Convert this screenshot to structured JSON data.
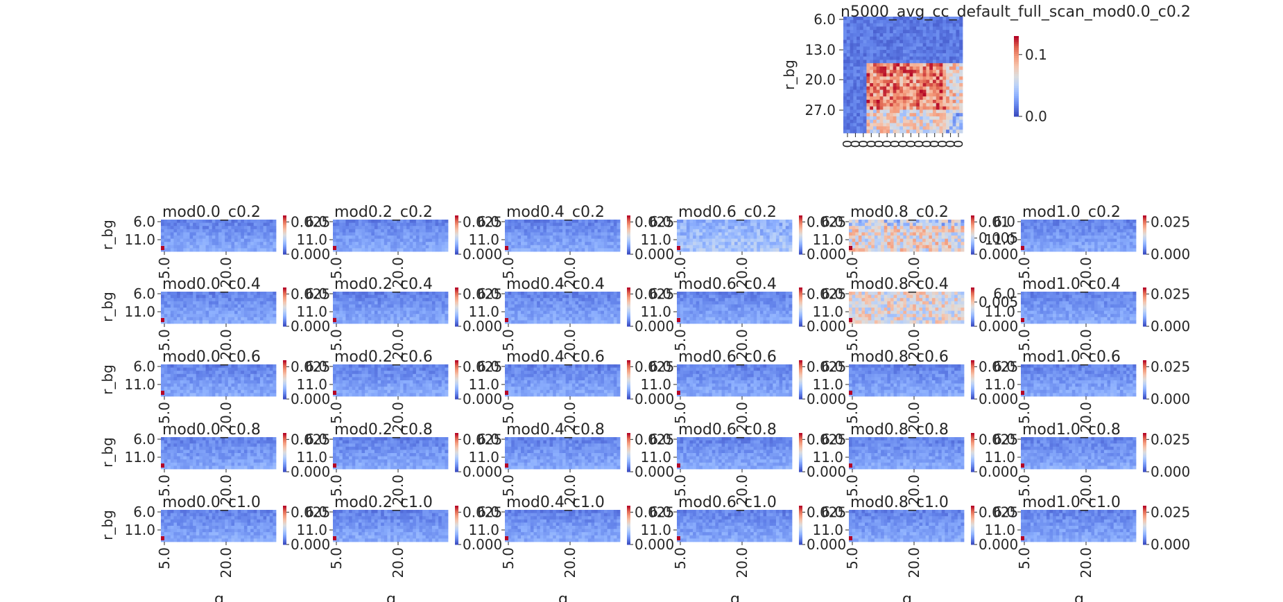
{
  "colors": {
    "low": "#3b4cc0",
    "mid": "#dddddd",
    "high": "#b40426",
    "text": "#262626"
  },
  "chart_data": [
    {
      "type": "heatmap",
      "role": "main",
      "title": "n5000_avg_cc_default_full_scan_mod0.0_c0.2",
      "xlabel": "",
      "ylabel": "r_bg",
      "yticks": [
        "6.0",
        "13.0",
        "20.0",
        "27.0"
      ],
      "xticks": [
        "0",
        "0",
        "0",
        "0",
        "0",
        "0",
        "0",
        "0",
        "0",
        "0",
        "0",
        "0",
        "0",
        "0",
        "0"
      ],
      "colorbar": {
        "range": [
          0,
          0.13
        ],
        "ticks": [
          "0.0",
          "0.1"
        ]
      },
      "pattern": "main",
      "grid_shape": [
        35,
        36
      ]
    },
    {
      "type": "heatmap-grid",
      "role": "subplots",
      "xlabel": "g",
      "ylabel": "r_bg",
      "yticks": [
        "6.0",
        "11.0"
      ],
      "xticks": [
        "5.0",
        "20.0"
      ],
      "grid_shape": [
        10,
        36
      ],
      "panels": [
        {
          "title": "mod0.0_c0.2",
          "cbar": [
            "0.000",
            "0.025"
          ],
          "pattern": "flat",
          "vmax": 0.03
        },
        {
          "title": "mod0.2_c0.2",
          "cbar": [
            "0.000",
            "0.025"
          ],
          "pattern": "flat",
          "vmax": 0.03
        },
        {
          "title": "mod0.4_c0.2",
          "cbar": [
            "0.000",
            "0.025"
          ],
          "pattern": "flat",
          "vmax": 0.03
        },
        {
          "title": "mod0.6_c0.2",
          "cbar": [
            "0.000",
            "0.025"
          ],
          "pattern": "light",
          "vmax": 0.03
        },
        {
          "title": "mod0.8_c0.2",
          "cbar": [
            "0.000",
            "0.005",
            "0.01"
          ],
          "pattern": "warm",
          "vmax": 0.012
        },
        {
          "title": "mod1.0_c0.2",
          "cbar": [
            "0.000",
            "0.025"
          ],
          "pattern": "flat",
          "vmax": 0.03
        },
        {
          "title": "mod0.0_c0.4",
          "cbar": [
            "0.000",
            "0.025"
          ],
          "pattern": "flat",
          "vmax": 0.03
        },
        {
          "title": "mod0.2_c0.4",
          "cbar": [
            "0.000",
            "0.025"
          ],
          "pattern": "flat",
          "vmax": 0.03
        },
        {
          "title": "mod0.4_c0.4",
          "cbar": [
            "0.000",
            "0.025"
          ],
          "pattern": "flat",
          "vmax": 0.03
        },
        {
          "title": "mod0.6_c0.4",
          "cbar": [
            "0.000",
            "0.025"
          ],
          "pattern": "flat",
          "vmax": 0.03
        },
        {
          "title": "mod0.8_c0.4",
          "cbar": [
            "0.000",
            "0.005"
          ],
          "pattern": "warm2",
          "vmax": 0.008
        },
        {
          "title": "mod1.0_c0.4",
          "cbar": [
            "0.000",
            "0.025"
          ],
          "pattern": "flat",
          "vmax": 0.03
        },
        {
          "title": "mod0.0_c0.6",
          "cbar": [
            "0.000",
            "0.025"
          ],
          "pattern": "flat",
          "vmax": 0.03
        },
        {
          "title": "mod0.2_c0.6",
          "cbar": [
            "0.000",
            "0.025"
          ],
          "pattern": "flat",
          "vmax": 0.03
        },
        {
          "title": "mod0.4_c0.6",
          "cbar": [
            "0.000",
            "0.025"
          ],
          "pattern": "flat",
          "vmax": 0.03
        },
        {
          "title": "mod0.6_c0.6",
          "cbar": [
            "0.000",
            "0.025"
          ],
          "pattern": "flat",
          "vmax": 0.03
        },
        {
          "title": "mod0.8_c0.6",
          "cbar": [
            "0.000",
            "0.025"
          ],
          "pattern": "flat",
          "vmax": 0.03
        },
        {
          "title": "mod1.0_c0.6",
          "cbar": [
            "0.000",
            "0.025"
          ],
          "pattern": "flat",
          "vmax": 0.03
        },
        {
          "title": "mod0.0_c0.8",
          "cbar": [
            "0.000",
            "0.025"
          ],
          "pattern": "flat",
          "vmax": 0.03
        },
        {
          "title": "mod0.2_c0.8",
          "cbar": [
            "0.000",
            "0.025"
          ],
          "pattern": "flat",
          "vmax": 0.03
        },
        {
          "title": "mod0.4_c0.8",
          "cbar": [
            "0.000",
            "0.025"
          ],
          "pattern": "flat",
          "vmax": 0.03
        },
        {
          "title": "mod0.6_c0.8",
          "cbar": [
            "0.000",
            "0.025"
          ],
          "pattern": "flat",
          "vmax": 0.03
        },
        {
          "title": "mod0.8_c0.8",
          "cbar": [
            "0.000",
            "0.025"
          ],
          "pattern": "flat",
          "vmax": 0.03
        },
        {
          "title": "mod1.0_c0.8",
          "cbar": [
            "0.000",
            "0.025"
          ],
          "pattern": "flat",
          "vmax": 0.03
        },
        {
          "title": "mod0.0_c1.0",
          "cbar": [
            "0.000",
            "0.025"
          ],
          "pattern": "flat",
          "vmax": 0.03
        },
        {
          "title": "mod0.2_c1.0",
          "cbar": [
            "0.000",
            "0.025"
          ],
          "pattern": "flat",
          "vmax": 0.03
        },
        {
          "title": "mod0.4_c1.0",
          "cbar": [
            "0.000",
            "0.025"
          ],
          "pattern": "flat",
          "vmax": 0.03
        },
        {
          "title": "mod0.6_c1.0",
          "cbar": [
            "0.000",
            "0.025"
          ],
          "pattern": "flat",
          "vmax": 0.03
        },
        {
          "title": "mod0.8_c1.0",
          "cbar": [
            "0.000",
            "0.025"
          ],
          "pattern": "flat",
          "vmax": 0.03
        },
        {
          "title": "mod1.0_c1.0",
          "cbar": [
            "0.000",
            "0.025"
          ],
          "pattern": "flat",
          "vmax": 0.03
        }
      ]
    }
  ]
}
